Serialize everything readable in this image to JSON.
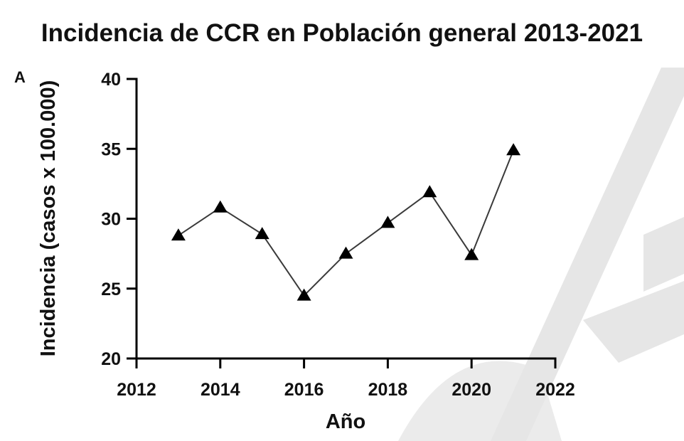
{
  "chart_data": {
    "type": "line",
    "title": "Incidencia de  CCR en Población general 2013-2021",
    "panel_label": "A",
    "xlabel": "Año",
    "ylabel": "Incidencia (casos x 100.000)",
    "xlim": [
      2012,
      2022
    ],
    "ylim": [
      20,
      40
    ],
    "xticks": [
      2012,
      2014,
      2016,
      2018,
      2020,
      2022
    ],
    "yticks": [
      20,
      25,
      30,
      35,
      40
    ],
    "grid": false,
    "marker": "triangle",
    "series": [
      {
        "x": [
          2013,
          2014,
          2015,
          2016,
          2017,
          2018,
          2019,
          2020,
          2021
        ],
        "y": [
          28.8,
          30.8,
          28.9,
          24.5,
          27.5,
          29.7,
          31.9,
          27.4,
          34.9
        ]
      }
    ],
    "colors": {
      "line": "#3a3a3a",
      "marker": "#000000",
      "axis": "#000000",
      "watermark": "#e6e6e6"
    }
  }
}
